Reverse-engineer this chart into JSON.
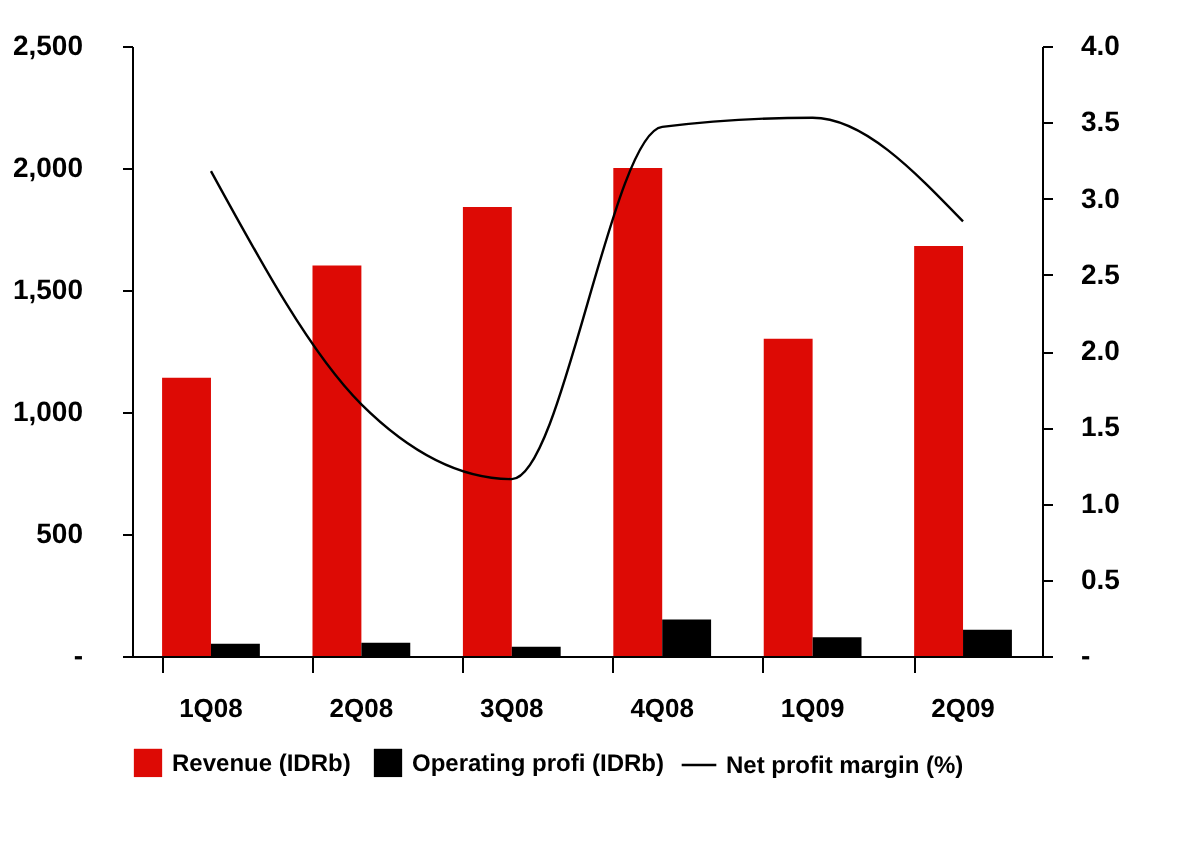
{
  "chart_data": {
    "type": "bar",
    "categories": [
      "1Q08",
      "2Q08",
      "3Q08",
      "4Q08",
      "1Q09",
      "2Q09"
    ],
    "series": [
      {
        "name": "Revenue (IDRb)",
        "color": "#dd0a05",
        "values": [
          1140,
          1600,
          1840,
          2000,
          1300,
          1680
        ]
      },
      {
        "name": "Operating profi (IDRb)",
        "color": "#000000",
        "values": [
          50,
          54,
          38,
          150,
          77,
          108
        ]
      },
      {
        "name": "Net profit margin (%)",
        "type": "line",
        "axis": "y2",
        "color": "#000000",
        "values": [
          3.18,
          1.65,
          1.16,
          3.47,
          3.53,
          2.85
        ]
      }
    ],
    "ylim": [
      0,
      2500
    ],
    "yticks": [
      {
        "value": 0,
        "label": "-"
      },
      500,
      {
        "value": 1000,
        "label": "1,000"
      },
      {
        "value": 1500,
        "label": "1,500"
      },
      {
        "value": 2000,
        "label": "2,000"
      },
      {
        "value": 2500,
        "label": "2,500"
      }
    ],
    "y2lim": [
      0,
      4
    ],
    "y2ticks": [
      {
        "value": 0,
        "label": "-"
      },
      {
        "value": 0.5,
        "label": "0.5"
      },
      {
        "value": 1,
        "label": "1.0"
      },
      {
        "value": 1.5,
        "label": "1.5"
      },
      {
        "value": 2,
        "label": "2.0"
      },
      {
        "value": 2.5,
        "label": "2.5"
      },
      {
        "value": 3,
        "label": "3.0"
      },
      {
        "value": 3.5,
        "label": "3.5"
      },
      {
        "value": 4,
        "label": "4.0"
      }
    ],
    "legend": "bottom",
    "grid": false
  }
}
